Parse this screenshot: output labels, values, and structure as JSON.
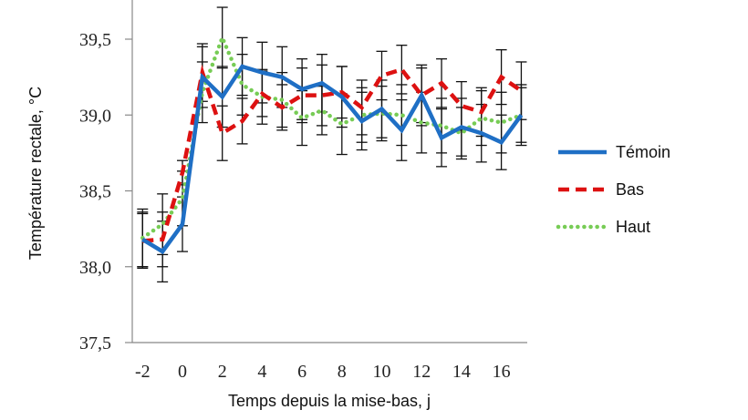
{
  "chart_data": {
    "type": "line",
    "title": "",
    "xlabel": "Temps depuis la mise-bas, j",
    "ylabel": "Température rectale, °C",
    "ylim": [
      37.5,
      39.75
    ],
    "xlim": [
      -2,
      17
    ],
    "x_ticks": [
      "-2",
      "0",
      "2",
      "4",
      "6",
      "8",
      "10",
      "12",
      "14",
      "16"
    ],
    "y_ticks": [
      "37,5",
      "38,0",
      "38,5",
      "39,0",
      "39,5"
    ],
    "grid": false,
    "legend_position": "right",
    "x": [
      -2,
      -1,
      0,
      1,
      2,
      3,
      4,
      5,
      6,
      7,
      8,
      9,
      10,
      11,
      12,
      13,
      14,
      15,
      16,
      17
    ],
    "series": [
      {
        "name": "Témoin",
        "color": "#1f6fc5",
        "style": "solid",
        "values": [
          38.18,
          38.1,
          38.28,
          39.25,
          39.12,
          39.32,
          39.28,
          39.25,
          39.17,
          39.21,
          39.12,
          38.96,
          39.04,
          38.9,
          39.13,
          38.85,
          38.92,
          38.88,
          38.82,
          39.0
        ],
        "error": [
          0.18,
          0.2,
          0.18,
          0.2,
          0.2,
          0.19,
          0.2,
          0.2,
          0.2,
          0.19,
          0.2,
          0.19,
          0.19,
          0.2,
          0.2,
          0.19,
          0.19,
          0.19,
          0.18,
          0.2
        ]
      },
      {
        "name": "Bas",
        "color": "#dd1111",
        "style": "dashed",
        "values": [
          38.17,
          38.18,
          38.62,
          39.28,
          38.88,
          38.96,
          39.14,
          39.05,
          39.13,
          39.13,
          39.15,
          39.05,
          39.26,
          39.3,
          39.13,
          39.21,
          39.06,
          39.02,
          39.25,
          39.16
        ],
        "error": [
          0.18,
          0.18,
          0.08,
          0.19,
          0.18,
          0.15,
          0.15,
          0.15,
          0.18,
          0.2,
          0.17,
          0.18,
          0.16,
          0.16,
          0.18,
          0.16,
          0.16,
          0.16,
          0.18,
          0.19
        ]
      },
      {
        "name": "Haut",
        "color": "#77cc55",
        "style": "dotted",
        "values": [
          38.19,
          38.28,
          38.45,
          39.15,
          39.51,
          39.2,
          39.12,
          39.1,
          38.98,
          39.03,
          38.94,
          39.0,
          39.01,
          39.0,
          38.95,
          38.93,
          38.88,
          38.98,
          38.95,
          39.0
        ],
        "error": [
          0.19,
          0.2,
          0.18,
          0.2,
          0.2,
          0.2,
          0.18,
          0.18,
          0.18,
          0.16,
          0.2,
          0.18,
          0.18,
          0.2,
          0.2,
          0.18,
          0.17,
          0.18,
          0.2,
          0.18
        ]
      }
    ]
  }
}
